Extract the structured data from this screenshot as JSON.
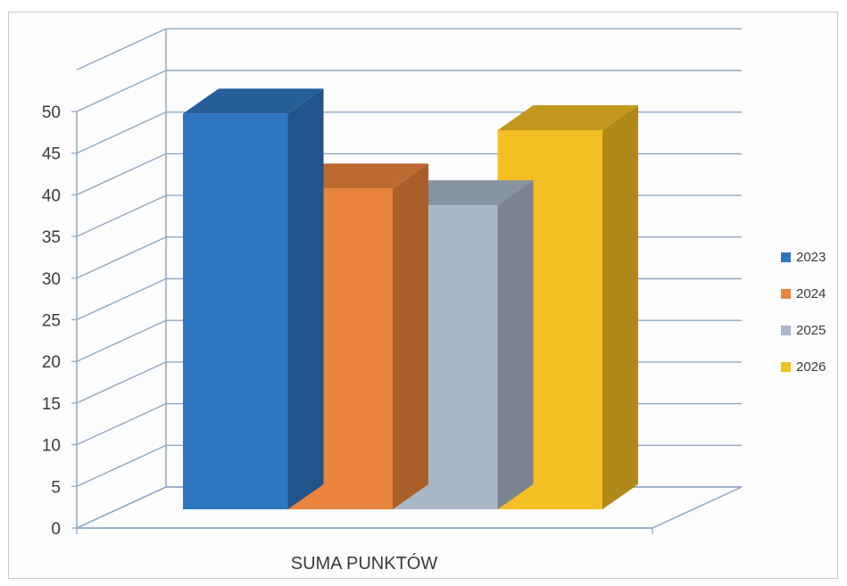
{
  "chart_data": {
    "type": "bar",
    "categories": [
      "SUMA PUNKTÓW"
    ],
    "series": [
      {
        "name": "2023",
        "values": [
          47.5
        ],
        "color": "#2e75c0"
      },
      {
        "name": "2024",
        "values": [
          38.5
        ],
        "color": "#eb843c"
      },
      {
        "name": "2025",
        "values": [
          36.5
        ],
        "color": "#a9b8c8"
      },
      {
        "name": "2026",
        "values": [
          45.5
        ],
        "color": "#f3bf24"
      }
    ],
    "y_ticks": [
      "0",
      "5",
      "10",
      "15",
      "20",
      "25",
      "30",
      "35",
      "40",
      "45",
      "50"
    ],
    "ylim": [
      0,
      50
    ],
    "grid": true,
    "legend": "right",
    "style": "3d-columns"
  }
}
